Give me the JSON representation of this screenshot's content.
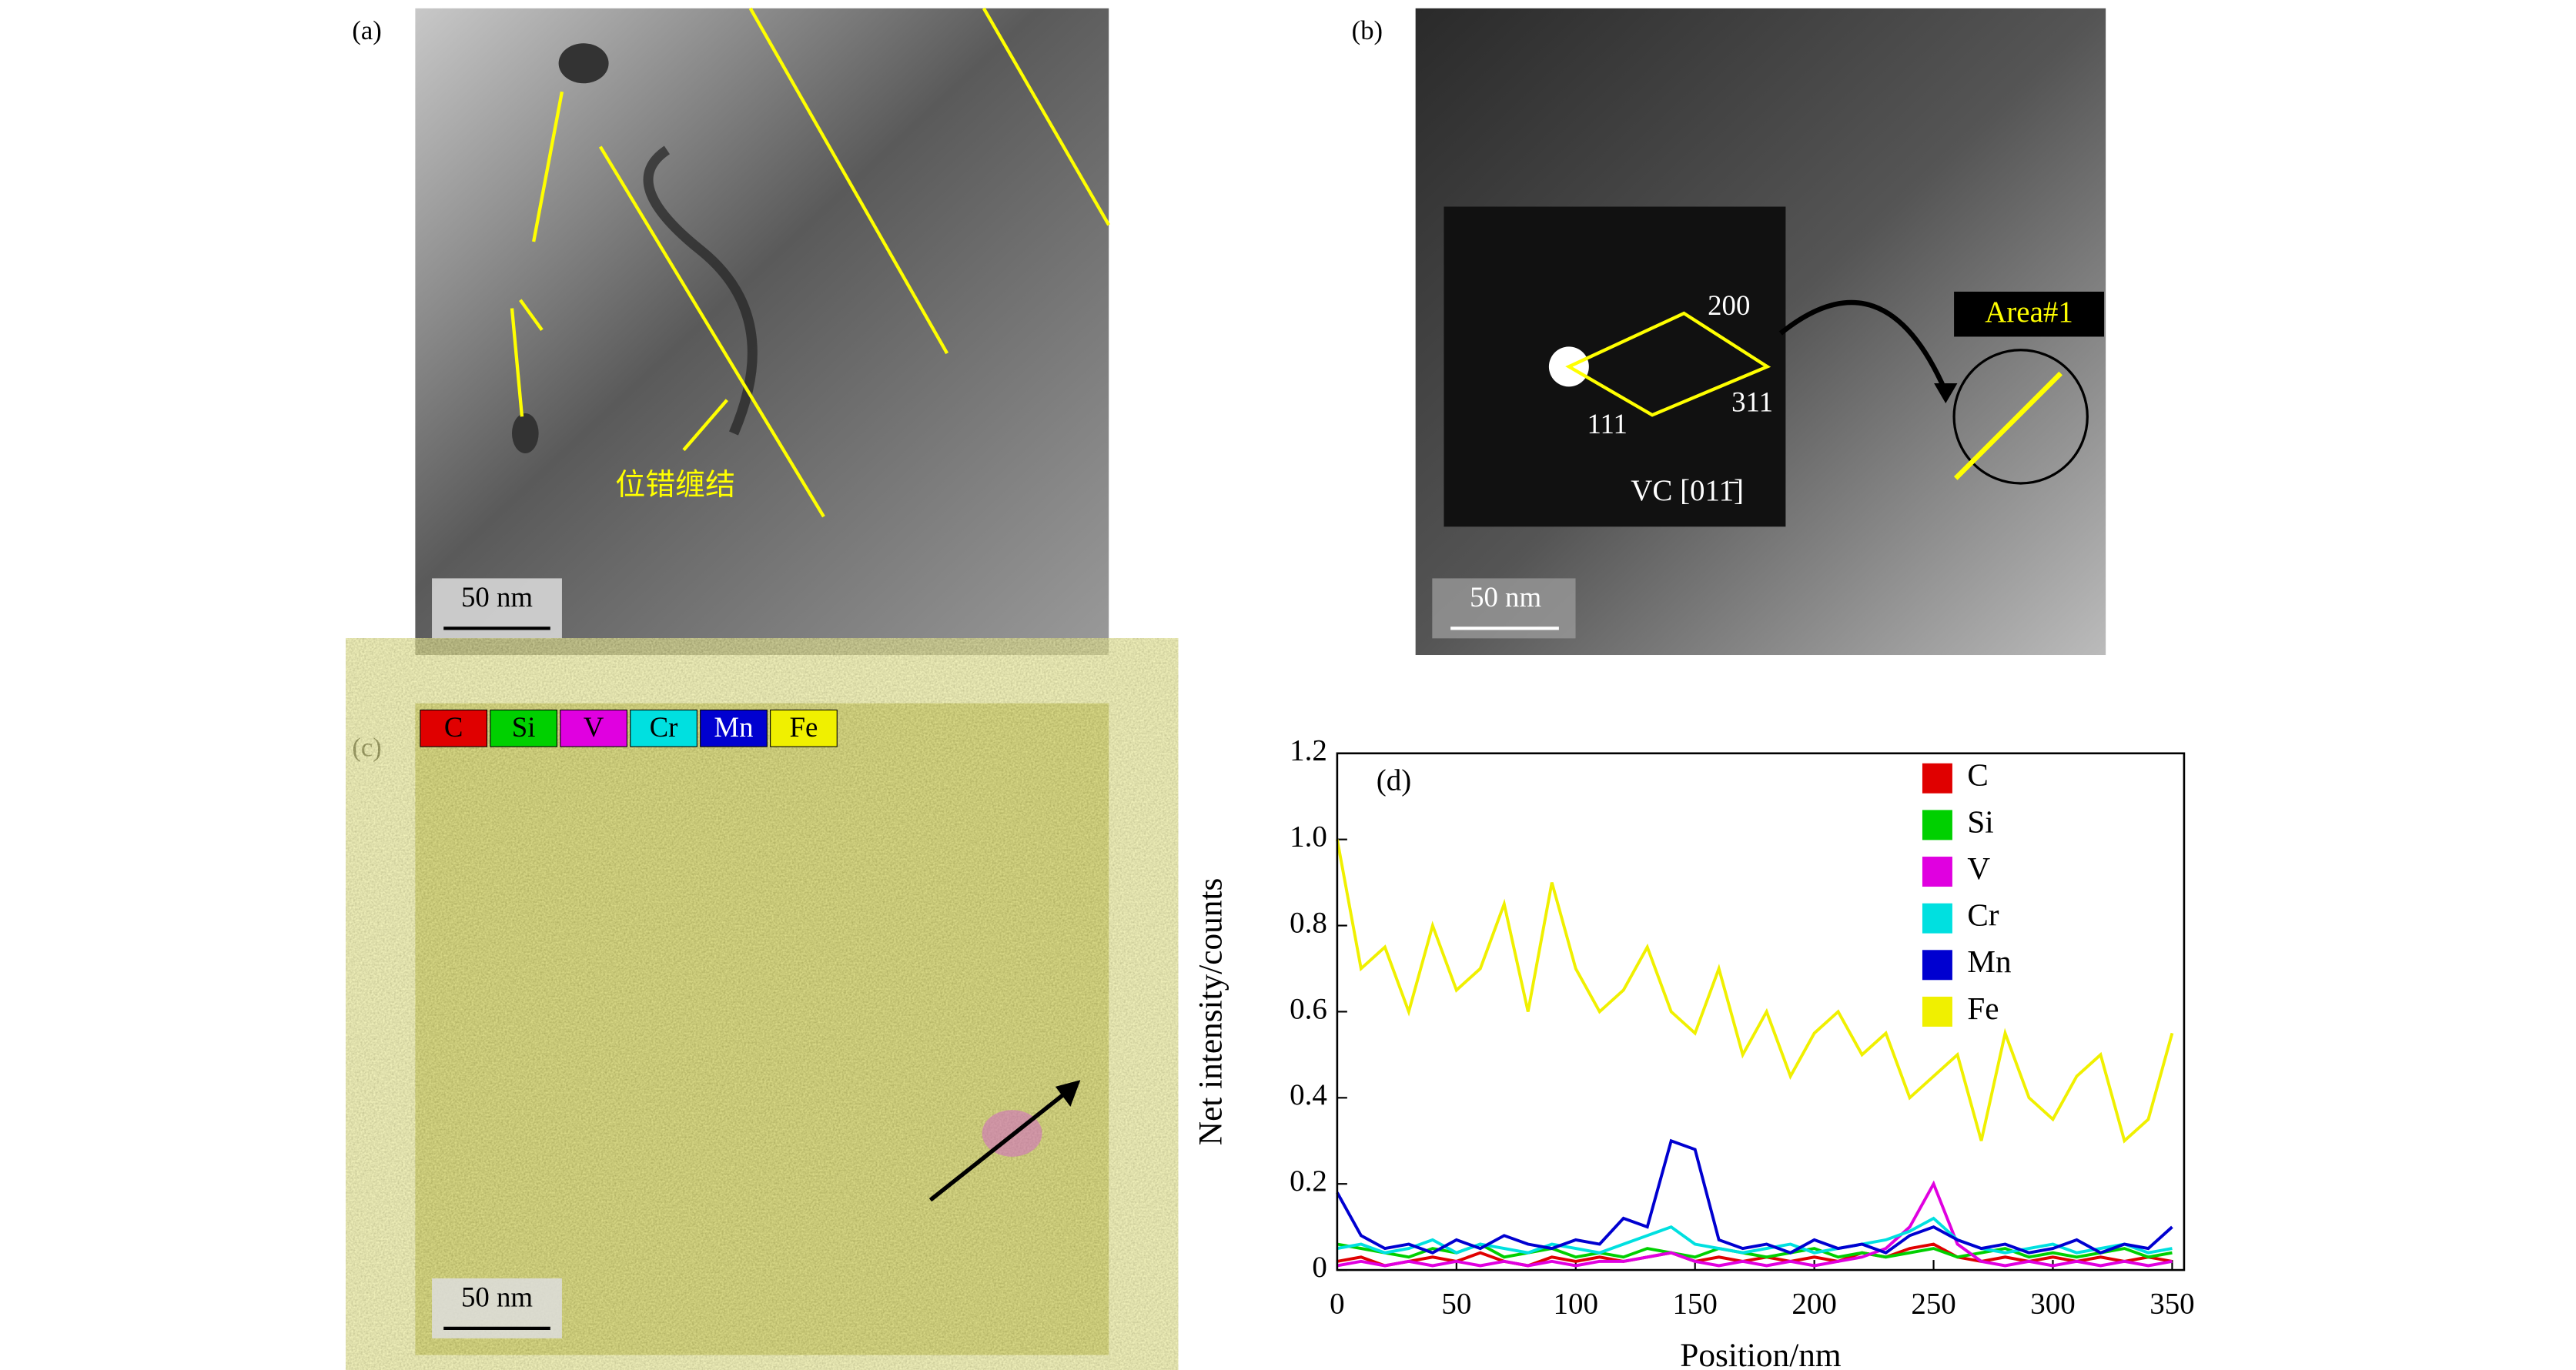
{
  "panels": {
    "a": {
      "label": "(a)",
      "scale_bar": "50 nm",
      "annotation": "位错缠结"
    },
    "b": {
      "label": "(b)",
      "scale_bar": "50 nm",
      "spot_200": "200",
      "spot_311": "311",
      "spot_111": "111",
      "zone_axis": "VC [011̄]",
      "area": "Area#1"
    },
    "c": {
      "label": "(c)",
      "scale_bar": "50 nm"
    }
  },
  "chart_data": {
    "type": "line",
    "panel_label": "(d)",
    "x_label": "Position/nm",
    "y_label": "Net intensity/counts",
    "x": [
      0,
      10,
      20,
      30,
      40,
      50,
      60,
      70,
      80,
      90,
      100,
      110,
      120,
      130,
      140,
      150,
      160,
      170,
      180,
      190,
      200,
      210,
      220,
      230,
      240,
      250,
      260,
      270,
      280,
      290,
      300,
      310,
      320,
      330,
      340,
      350
    ],
    "xlim": [
      0,
      355
    ],
    "xticks": [
      0,
      50,
      100,
      150,
      200,
      250,
      300,
      350
    ],
    "ylim": [
      0,
      1.2
    ],
    "yticks": [
      0,
      0.2,
      0.4,
      0.6,
      {
        "value": 1,
        "label": "1.0"
      },
      0.8,
      1.2
    ],
    "series": [
      {
        "name": "C",
        "color": "#e00000",
        "values": [
          0.02,
          0.03,
          0.01,
          0.02,
          0.03,
          0.02,
          0.04,
          0.02,
          0.01,
          0.03,
          0.02,
          0.03,
          0.02,
          0.03,
          0.04,
          0.02,
          0.03,
          0.02,
          0.03,
          0.02,
          0.03,
          0.02,
          0.04,
          0.03,
          0.05,
          0.06,
          0.03,
          0.02,
          0.03,
          0.02,
          0.03,
          0.02,
          0.03,
          0.02,
          0.03,
          0.02
        ]
      },
      {
        "name": "Si",
        "color": "#00d000",
        "values": [
          0.06,
          0.05,
          0.04,
          0.03,
          0.05,
          0.04,
          0.06,
          0.03,
          0.04,
          0.05,
          0.03,
          0.04,
          0.03,
          0.05,
          0.04,
          0.03,
          0.05,
          0.04,
          0.03,
          0.04,
          0.05,
          0.03,
          0.04,
          0.03,
          0.04,
          0.05,
          0.03,
          0.04,
          0.05,
          0.03,
          0.04,
          0.03,
          0.04,
          0.05,
          0.03,
          0.04
        ]
      },
      {
        "name": "V",
        "color": "#e000e0",
        "values": [
          0.01,
          0.02,
          0.01,
          0.02,
          0.01,
          0.02,
          0.01,
          0.02,
          0.01,
          0.02,
          0.01,
          0.02,
          0.02,
          0.03,
          0.04,
          0.02,
          0.01,
          0.02,
          0.01,
          0.02,
          0.01,
          0.02,
          0.03,
          0.05,
          0.1,
          0.2,
          0.06,
          0.02,
          0.01,
          0.02,
          0.01,
          0.02,
          0.01,
          0.02,
          0.01,
          0.02
        ]
      },
      {
        "name": "Cr",
        "color": "#00e0e0",
        "values": [
          0.05,
          0.06,
          0.04,
          0.05,
          0.07,
          0.04,
          0.06,
          0.05,
          0.04,
          0.06,
          0.05,
          0.04,
          0.06,
          0.08,
          0.1,
          0.06,
          0.05,
          0.04,
          0.05,
          0.06,
          0.04,
          0.05,
          0.06,
          0.07,
          0.09,
          0.12,
          0.07,
          0.05,
          0.04,
          0.05,
          0.06,
          0.04,
          0.05,
          0.06,
          0.04,
          0.05
        ]
      },
      {
        "name": "Mn",
        "color": "#0000d0",
        "values": [
          0.18,
          0.08,
          0.05,
          0.06,
          0.04,
          0.07,
          0.05,
          0.08,
          0.06,
          0.05,
          0.07,
          0.06,
          0.12,
          0.1,
          0.3,
          0.28,
          0.07,
          0.05,
          0.06,
          0.04,
          0.07,
          0.05,
          0.06,
          0.04,
          0.08,
          0.1,
          0.07,
          0.05,
          0.06,
          0.04,
          0.05,
          0.07,
          0.04,
          0.06,
          0.05,
          0.1
        ]
      },
      {
        "name": "Fe",
        "color": "#f0f000",
        "values": [
          1.0,
          0.7,
          0.75,
          0.6,
          0.8,
          0.65,
          0.7,
          0.85,
          0.6,
          0.9,
          0.7,
          0.6,
          0.65,
          0.75,
          0.6,
          0.55,
          0.7,
          0.5,
          0.6,
          0.45,
          0.55,
          0.6,
          0.5,
          0.55,
          0.4,
          0.45,
          0.5,
          0.3,
          0.55,
          0.4,
          0.35,
          0.45,
          0.5,
          0.3,
          0.35,
          0.55
        ]
      }
    ]
  }
}
